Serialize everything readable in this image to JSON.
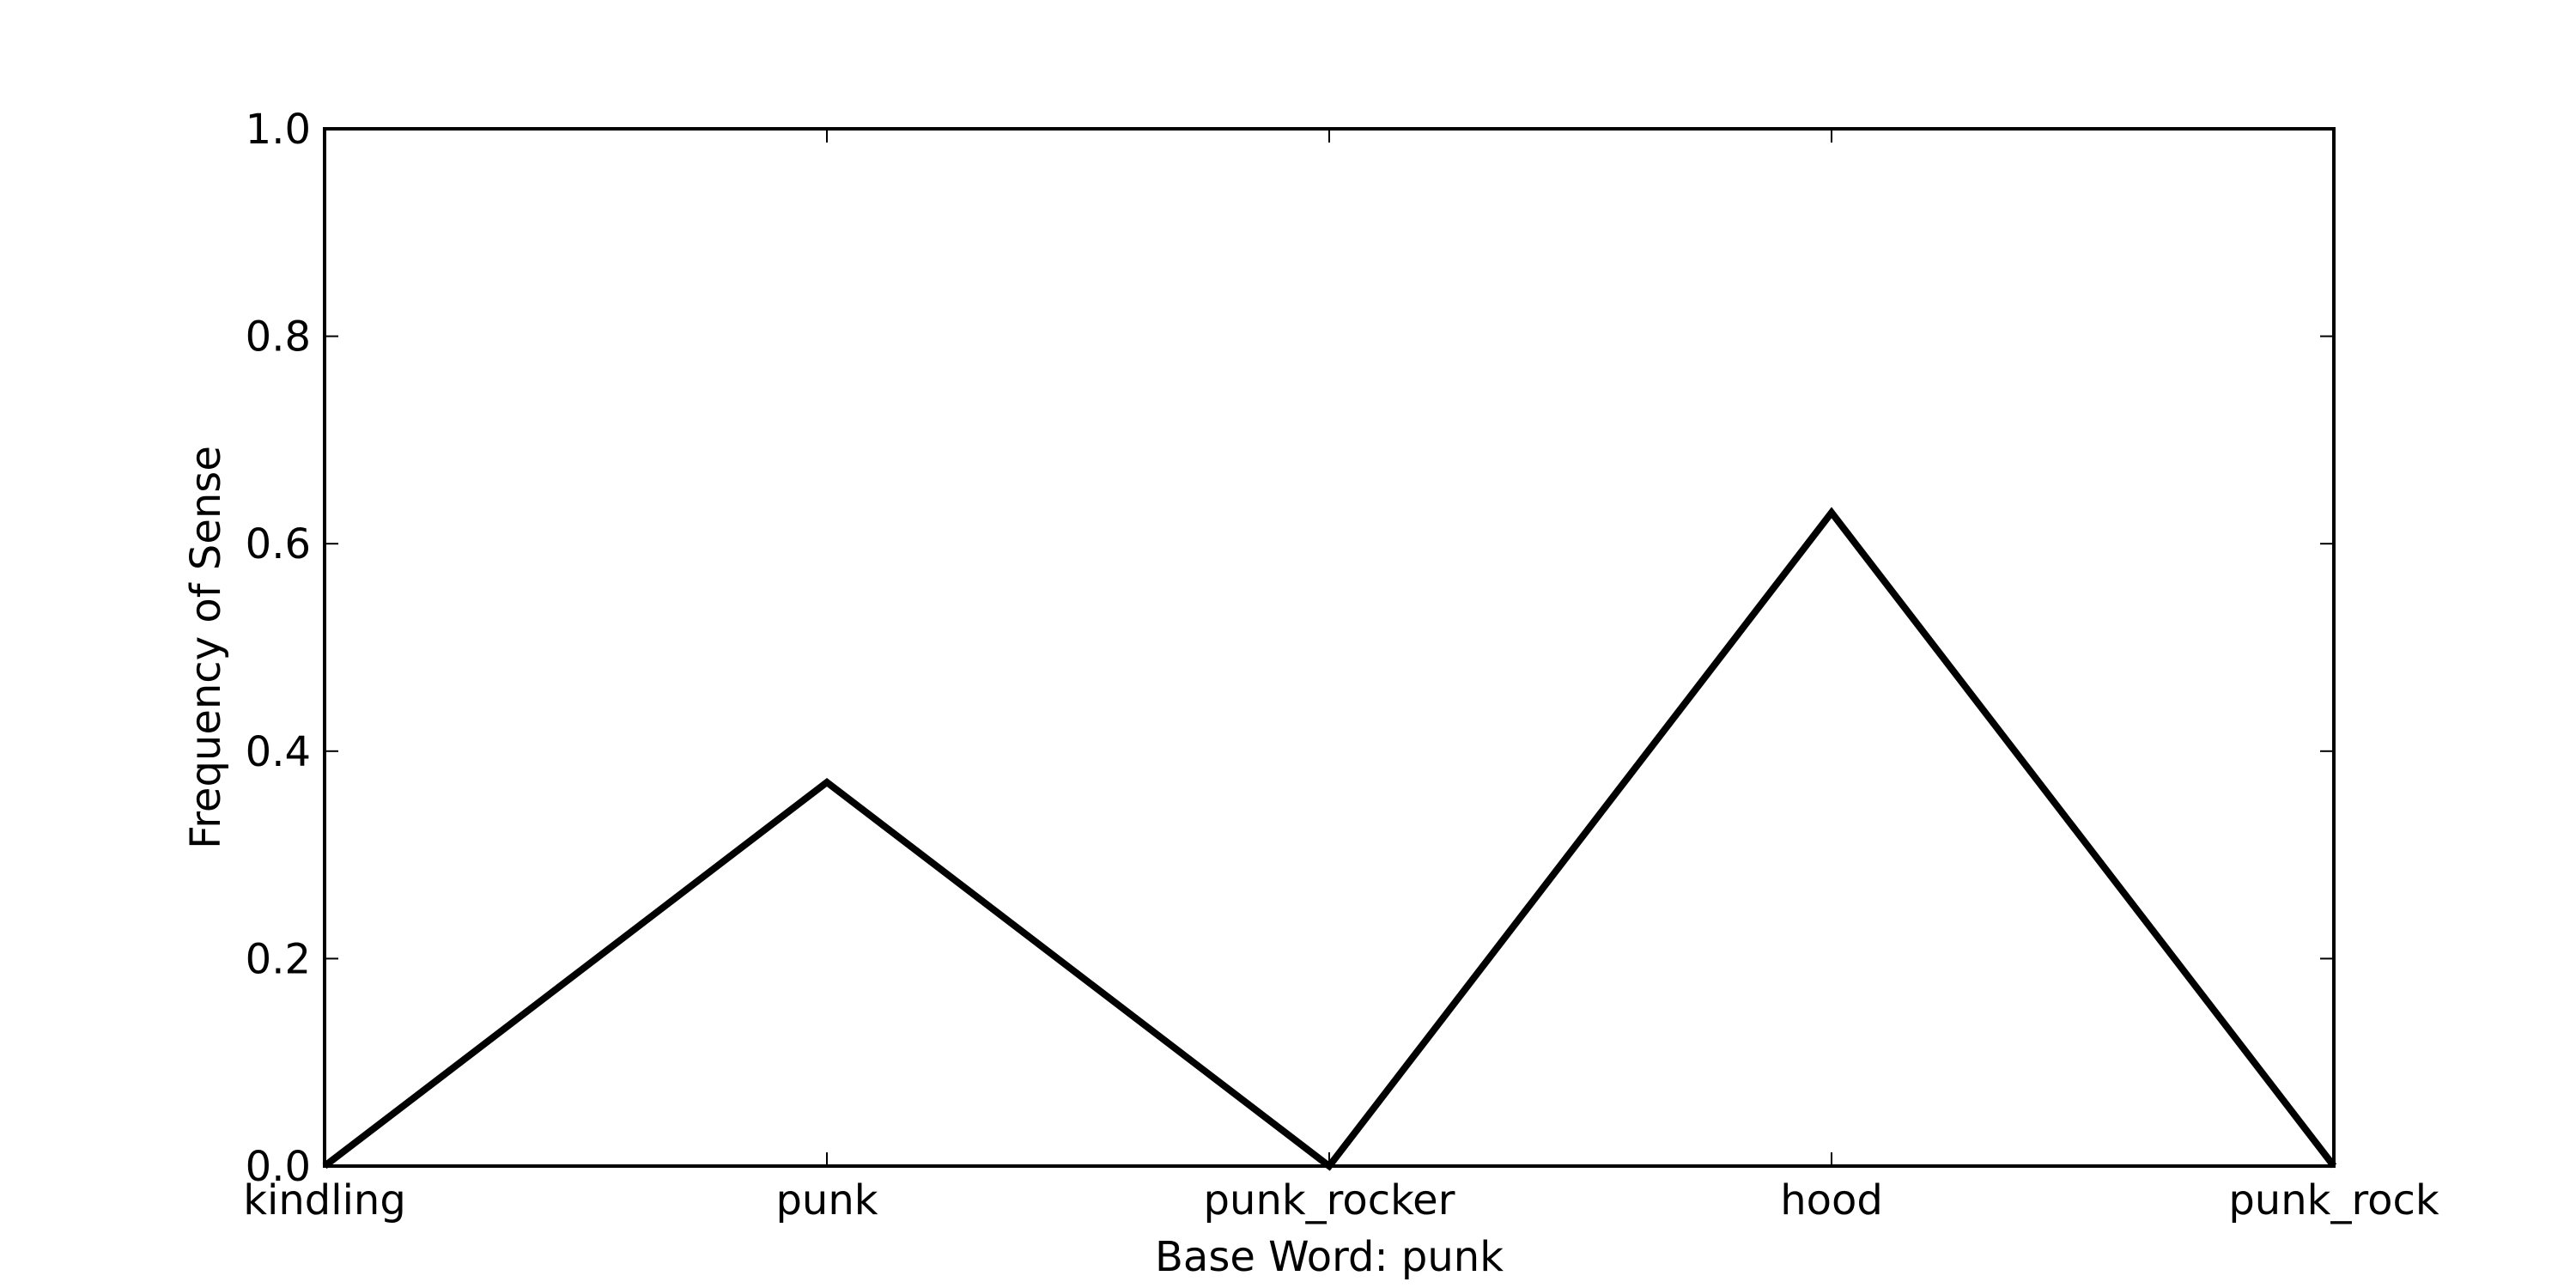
{
  "chart_data": {
    "type": "line",
    "categories": [
      "kindling",
      "punk",
      "punk_rocker",
      "hood",
      "punk_rock"
    ],
    "series": [
      {
        "values": [
          0.0,
          0.37,
          0.0,
          0.63,
          0.0
        ],
        "color": "#000000"
      }
    ],
    "title": "",
    "xlabel": "Base Word: punk",
    "ylabel": "Frequency of Sense",
    "ylim": [
      0.0,
      1.0
    ],
    "yticks": [
      "0.0",
      "0.2",
      "0.4",
      "0.6",
      "0.8",
      "1.0"
    ],
    "grid": false,
    "legend": "none"
  }
}
